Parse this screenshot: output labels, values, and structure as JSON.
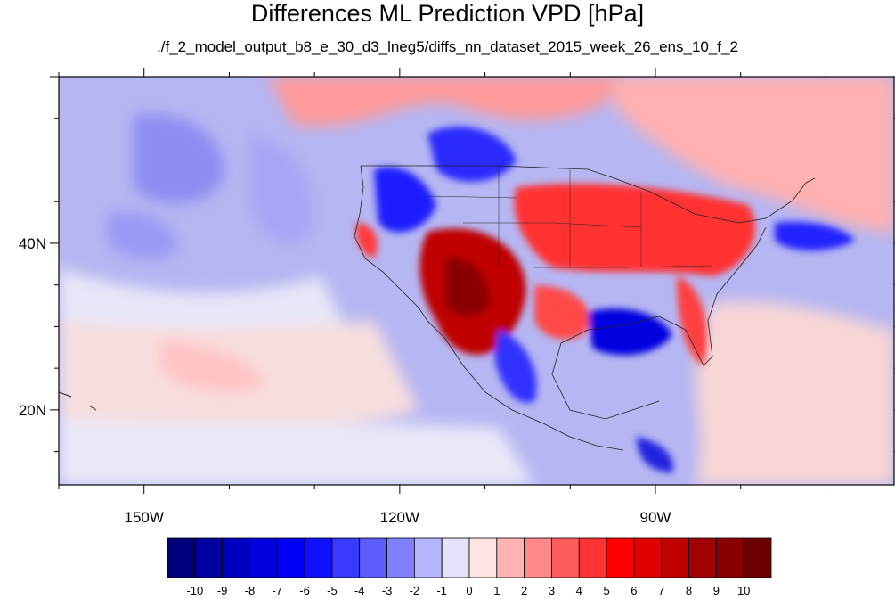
{
  "title": "Differences ML Prediction VPD [hPa]",
  "subtitle": "./f_2_model_output_b8_e_30_d3_lneg5/diffs_nn_dataset_2015_week_26_ens_10_f_2",
  "map": {
    "lon_range": [
      -160,
      -62
    ],
    "lat_range": [
      11,
      60
    ],
    "lon_labels": [
      "150W",
      "120W",
      "90W"
    ],
    "lat_labels": [
      "40N",
      "20N"
    ]
  },
  "colorbar": {
    "labels": [
      "-10",
      "-9",
      "-8",
      "-7",
      "-6",
      "-5",
      "-4",
      "-3",
      "-2",
      "-1",
      "0",
      "1",
      "2",
      "3",
      "4",
      "5",
      "6",
      "7",
      "8",
      "9",
      "10"
    ],
    "colors": [
      "#00007a",
      "#0000a0",
      "#0000c0",
      "#0000df",
      "#0000f5",
      "#1010ff",
      "#3a3aff",
      "#5c5cff",
      "#8080ff",
      "#b4b4ff",
      "#e2e2fa",
      "#ffe2e2",
      "#ffb4b4",
      "#ff8888",
      "#ff5c5c",
      "#ff3333",
      "#ff0000",
      "#df0000",
      "#c20000",
      "#a00000",
      "#880000",
      "#6a0000"
    ]
  }
}
